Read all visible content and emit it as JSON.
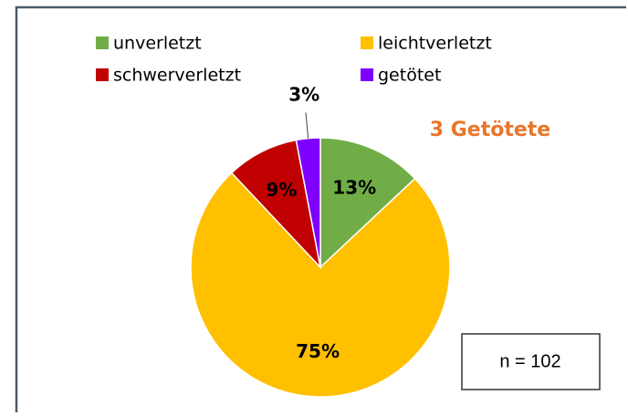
{
  "chart_data": {
    "type": "pie",
    "categories": [
      "unverletzt",
      "leichtverletzt",
      "schwerverletzt",
      "getötet"
    ],
    "values": [
      13,
      75,
      9,
      3
    ],
    "value_labels": [
      "13%",
      "75%",
      "9%",
      "3%"
    ],
    "colors": [
      "#70ad47",
      "#ffc000",
      "#c00000",
      "#7f00ff"
    ],
    "annotations": [
      "3 Getötete",
      "n = 102"
    ]
  }
}
